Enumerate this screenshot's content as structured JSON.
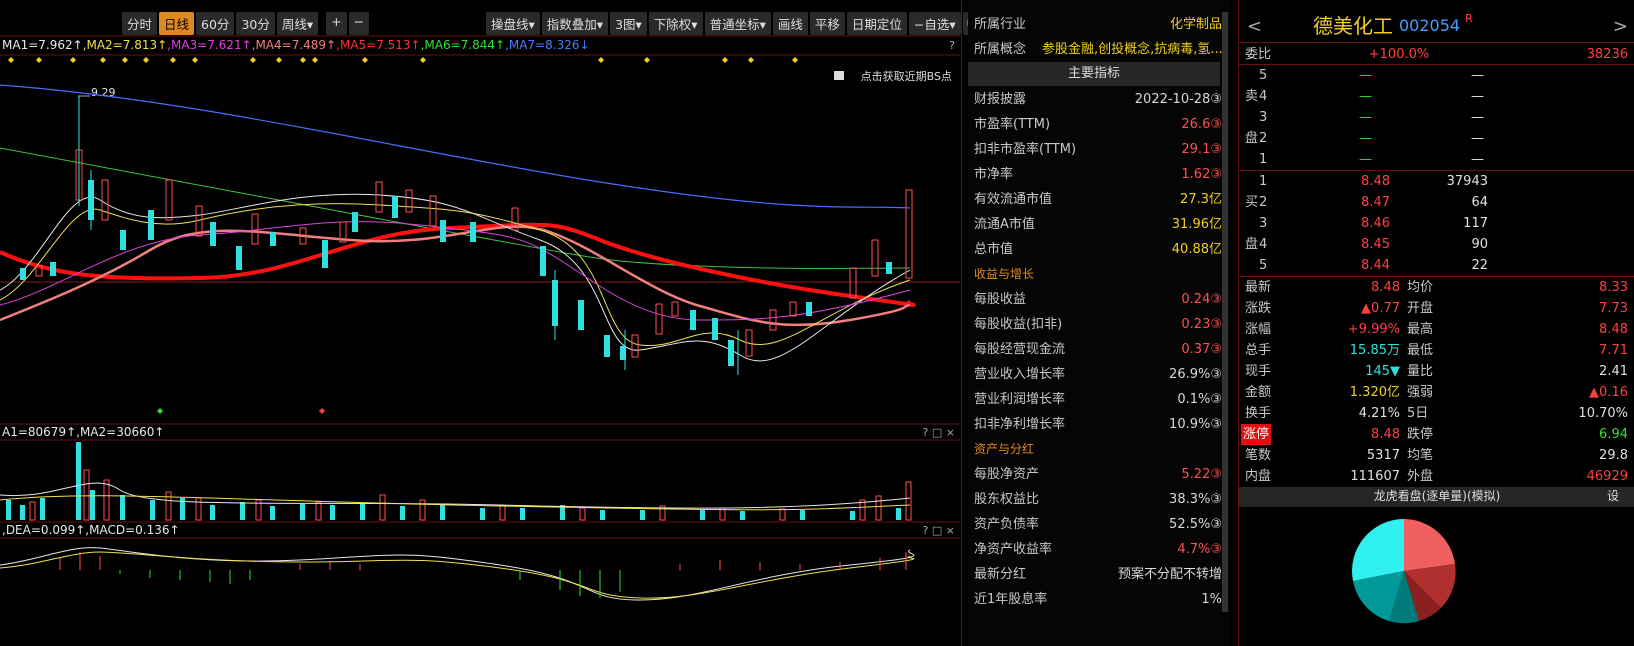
{
  "toolbar": {
    "left": [
      "分时",
      "日线",
      "60分",
      "30分",
      "周线▾",
      "+",
      "−"
    ],
    "active": "日线",
    "right": [
      "操盘线▾",
      "指数叠加▾",
      "3图▾",
      "下除权▾",
      "普通坐标▾",
      "画线",
      "平移",
      "日期定位",
      "−自选▾",
      "▸|"
    ]
  },
  "main_legend": [
    {
      "text": "MA1=7.962↑",
      "color": "#e8e8e8"
    },
    {
      "text": ",MA2=7.813↑",
      "color": "#f0e050"
    },
    {
      "text": ",MA3=7.621↑",
      "color": "#e040e0"
    },
    {
      "text": ",MA4=7.489↑",
      "color": "#f08080"
    },
    {
      "text": ",MA5=7.513↑",
      "color": "#ff3030"
    },
    {
      "text": ",MA6=7.844↑",
      "color": "#30e030"
    },
    {
      "text": ",MA7=8.326↓",
      "color": "#4a7cff"
    }
  ],
  "chart": {
    "peak_label": "9.29",
    "bs_hint": "点击获取近期BS点",
    "panel_buttons": "? □ ×"
  },
  "volume_legend": "A1=80679↑,MA2=30660↑",
  "macd_legend": ",DEA=0.099↑,MACD=0.136↑",
  "info": {
    "top": [
      {
        "label": "所属行业",
        "value": "化学制品",
        "color": "#f0d020"
      },
      {
        "label": "所属概念",
        "value": "参股金融,创投概念,抗病毒,氢...",
        "color": "#f0d020"
      }
    ],
    "header": "主要指标",
    "rows": [
      {
        "label": "财报披露",
        "value": "2022-10-28③",
        "color": "#d8d8d8"
      },
      {
        "label": "市盈率(TTM)",
        "value": "26.6③",
        "color": "#ff5050"
      },
      {
        "label": "扣非市盈率(TTM)",
        "value": "29.1③",
        "color": "#ff5050"
      },
      {
        "label": "市净率",
        "value": "1.62③",
        "color": "#ff5050"
      },
      {
        "label": "有效流通市值",
        "value": "27.3亿",
        "color": "#f0d020"
      },
      {
        "label": "流通A市值",
        "value": "31.96亿",
        "color": "#f0d020"
      },
      {
        "label": "总市值",
        "value": "40.88亿",
        "color": "#f0d020"
      },
      {
        "section": "收益与增长"
      },
      {
        "label": "每股收益",
        "value": "0.24③",
        "color": "#ff5050"
      },
      {
        "label": "每股收益(扣非)",
        "value": "0.23③",
        "color": "#ff5050"
      },
      {
        "label": "每股经营现金流",
        "value": "0.37③",
        "color": "#ff5050"
      },
      {
        "label": "营业收入增长率",
        "value": "26.9%③",
        "color": "#d8d8d8"
      },
      {
        "label": "营业利润增长率",
        "value": "0.1%③",
        "color": "#d8d8d8"
      },
      {
        "label": "扣非净利增长率",
        "value": "10.9%③",
        "color": "#d8d8d8"
      },
      {
        "section": "资产与分红"
      },
      {
        "label": "每股净资产",
        "value": "5.22③",
        "color": "#ff5050"
      },
      {
        "label": "股东权益比",
        "value": "38.3%③",
        "color": "#d8d8d8"
      },
      {
        "label": "资产负债率",
        "value": "52.5%③",
        "color": "#d8d8d8"
      },
      {
        "label": "净资产收益率",
        "value": "4.7%③",
        "color": "#ff5050"
      },
      {
        "label": "最新分红",
        "value": "预案不分配不转增",
        "color": "#d8d8d8"
      },
      {
        "label": "近1年股息率",
        "value": "1%",
        "color": "#d8d8d8"
      }
    ]
  },
  "quote": {
    "name": "德美化工",
    "code": "002054",
    "tag": "R",
    "prev": "<",
    "next": ">",
    "ratio": {
      "label": "委比",
      "value": "+100.0%",
      "volume": "38236"
    },
    "sell_side": [
      "卖",
      "盘"
    ],
    "buy_side": [
      "买",
      "盘"
    ],
    "sell": [
      {
        "level": "5",
        "price": "—",
        "volume": "—"
      },
      {
        "level": "4",
        "price": "—",
        "volume": "—"
      },
      {
        "level": "3",
        "price": "—",
        "volume": "—"
      },
      {
        "level": "2",
        "price": "—",
        "volume": "—"
      },
      {
        "level": "1",
        "price": "—",
        "volume": "—"
      }
    ],
    "buy": [
      {
        "level": "1",
        "price": "8.48",
        "volume": "37943"
      },
      {
        "level": "2",
        "price": "8.47",
        "volume": "64"
      },
      {
        "level": "3",
        "price": "8.46",
        "volume": "117"
      },
      {
        "level": "4",
        "price": "8.45",
        "volume": "90"
      },
      {
        "level": "5",
        "price": "8.44",
        "volume": "22"
      }
    ],
    "stats": [
      [
        {
          "label": "最新",
          "value": "8.48",
          "color": "#ff4040"
        },
        {
          "label": "均价",
          "value": "8.33",
          "color": "#ff4040"
        }
      ],
      [
        {
          "label": "涨跌",
          "value": "▲0.77",
          "color": "#ff4040"
        },
        {
          "label": "开盘",
          "value": "7.73",
          "color": "#ff4040"
        }
      ],
      [
        {
          "label": "涨幅",
          "value": "+9.99%",
          "color": "#ff4040"
        },
        {
          "label": "最高",
          "value": "8.48",
          "color": "#ff4040"
        }
      ],
      [
        {
          "label": "总手",
          "value": "15.85万",
          "color": "#30e0e0"
        },
        {
          "label": "最低",
          "value": "7.71",
          "color": "#ff4040"
        }
      ],
      [
        {
          "label": "现手",
          "value": "145▼",
          "color": "#30e0e0"
        },
        {
          "label": "量比",
          "value": "2.41",
          "color": "#e0e0e0"
        }
      ],
      [
        {
          "label": "金额",
          "value": "1.320亿",
          "color": "#f0d020"
        },
        {
          "label": "强弱",
          "value": "▲0.16",
          "color": "#ff4040"
        }
      ],
      [
        {
          "label": "换手",
          "value": "4.21%",
          "color": "#e0e0e0"
        },
        {
          "label": "5日",
          "value": "10.70%",
          "color": "#e0e0e0"
        }
      ],
      [
        {
          "label": "涨停",
          "value": "8.48",
          "color": "#ff4040"
        },
        {
          "label": "跌停",
          "value": "6.94",
          "color": "#30e030"
        }
      ],
      [
        {
          "label": "笔数",
          "value": "5317",
          "color": "#e0e0e0"
        },
        {
          "label": "均笔",
          "value": "29.8",
          "color": "#e0e0e0"
        }
      ],
      [
        {
          "label": "内盘",
          "value": "111607",
          "color": "#e0e0e0"
        },
        {
          "label": "外盘",
          "value": "46929",
          "color": "#ff4040"
        }
      ]
    ],
    "footer": "龙虎看盘(逐单量)(模拟)",
    "settings": "设"
  }
}
